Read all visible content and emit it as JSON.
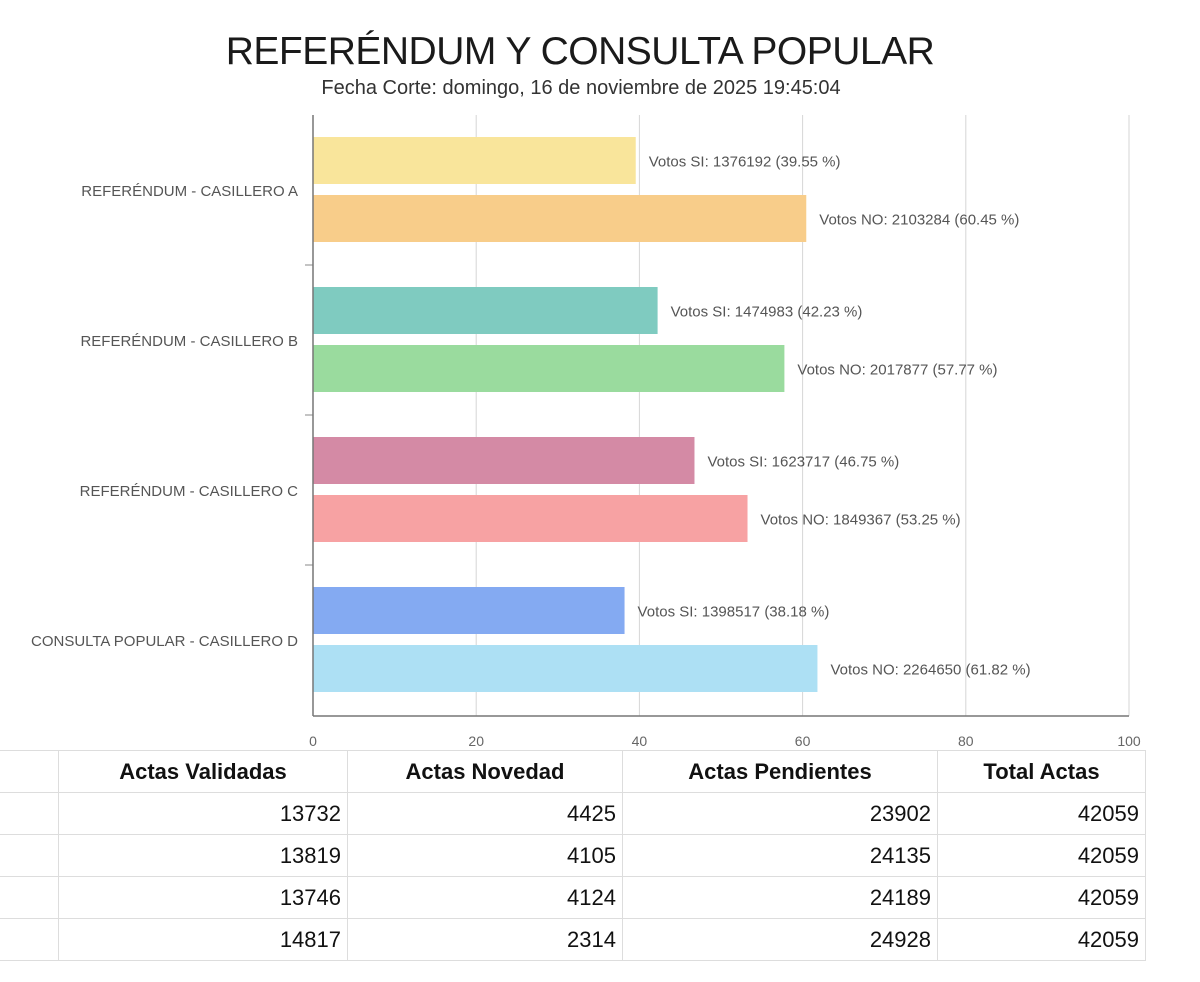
{
  "header": {
    "title": "REFERÉNDUM Y CONSULTA POPULAR",
    "subtitle": "Fecha Corte: domingo, 16 de noviembre de 2025 19:45:04"
  },
  "chart_data": {
    "type": "bar",
    "orientation": "horizontal",
    "categories": [
      "REFERÉNDUM - CASILLERO A",
      "REFERÉNDUM - CASILLERO B",
      "REFERÉNDUM - CASILLERO C",
      "CONSULTA POPULAR - CASILLERO D"
    ],
    "series": [
      {
        "name": "Votos SI",
        "values": [
          39.55,
          42.23,
          46.75,
          38.18
        ],
        "labels": [
          "Votos SI: 1376192 (39.55 %)",
          "Votos SI: 1474983 (42.23 %)",
          "Votos SI: 1623717 (46.75 %)",
          "Votos SI: 1398517 (38.18 %)"
        ],
        "colors": [
          "#f9e59b",
          "#7fcbc0",
          "#d48aa5",
          "#84aaf2"
        ]
      },
      {
        "name": "Votos NO",
        "values": [
          60.45,
          57.77,
          53.25,
          61.82
        ],
        "labels": [
          "Votos NO: 2103284 (60.45 %)",
          "Votos NO: 2017877 (57.77 %)",
          "Votos NO: 1849367 (53.25 %)",
          "Votos NO: 2264650 (61.82 %)"
        ],
        "colors": [
          "#f8cd8a",
          "#9adb9e",
          "#f7a2a3",
          "#ade0f4"
        ]
      }
    ],
    "xlim": [
      0,
      100
    ],
    "xticks": [
      0,
      20,
      40,
      60,
      80,
      100
    ],
    "xtick_labels": [
      "0",
      "20",
      "40",
      "60",
      "80",
      "100"
    ],
    "grid": true
  },
  "table": {
    "headers": [
      "",
      "Actas Validadas",
      "Actas Novedad",
      "Actas Pendientes",
      "Total Actas"
    ],
    "rows": [
      [
        "",
        "13732",
        "4425",
        "23902",
        "42059"
      ],
      [
        "",
        "13819",
        "4105",
        "24135",
        "42059"
      ],
      [
        "",
        "13746",
        "4124",
        "24189",
        "42059"
      ],
      [
        "",
        "14817",
        "2314",
        "24928",
        "42059"
      ]
    ]
  }
}
